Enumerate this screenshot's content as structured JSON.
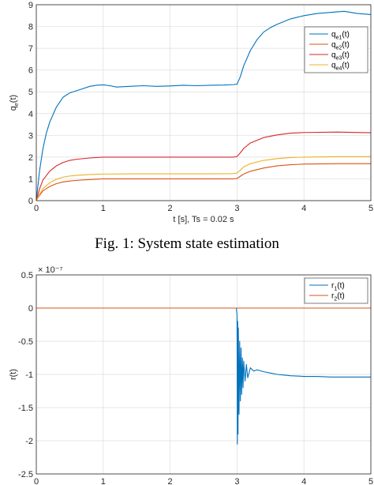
{
  "caption": "Fig. 1: System state estimation",
  "chart_data": [
    {
      "type": "line",
      "title": "",
      "xlabel": "t [s], Ts = 0.02 s",
      "ylabel": "q_e(t)",
      "xlim": [
        0,
        5
      ],
      "ylim": [
        0,
        9
      ],
      "xticks": [
        "0",
        "1",
        "2",
        "3",
        "4",
        "5"
      ],
      "yticks": [
        "0",
        "1",
        "2",
        "3",
        "4",
        "5",
        "6",
        "7",
        "8",
        "9"
      ],
      "grid": true,
      "legend": "top-right",
      "series": [
        {
          "name": "q_e1(t)",
          "color": "#0072BD",
          "x": [
            0,
            0.05,
            0.1,
            0.15,
            0.2,
            0.3,
            0.4,
            0.5,
            0.6,
            0.7,
            0.8,
            0.9,
            1.0,
            1.1,
            1.2,
            1.4,
            1.6,
            1.8,
            2.0,
            2.2,
            2.4,
            2.6,
            2.8,
            2.95,
            3.0,
            3.05,
            3.1,
            3.2,
            3.3,
            3.4,
            3.5,
            3.6,
            3.8,
            4.0,
            4.2,
            4.4,
            4.6,
            4.8,
            5.0
          ],
          "values": [
            0,
            1.4,
            2.4,
            3.1,
            3.6,
            4.3,
            4.75,
            4.95,
            5.05,
            5.15,
            5.25,
            5.3,
            5.32,
            5.28,
            5.22,
            5.25,
            5.28,
            5.25,
            5.27,
            5.3,
            5.28,
            5.3,
            5.31,
            5.33,
            5.35,
            5.7,
            6.2,
            6.9,
            7.4,
            7.75,
            7.95,
            8.1,
            8.35,
            8.5,
            8.6,
            8.65,
            8.7,
            8.6,
            8.55
          ]
        },
        {
          "name": "q_e2(t)",
          "color": "#D95319",
          "x": [
            0,
            0.05,
            0.1,
            0.2,
            0.3,
            0.4,
            0.5,
            0.6,
            0.8,
            1.0,
            1.5,
            2.0,
            2.5,
            2.95,
            3.0,
            3.05,
            3.1,
            3.2,
            3.4,
            3.6,
            3.8,
            4.0,
            4.5,
            5.0
          ],
          "values": [
            0,
            0.25,
            0.45,
            0.65,
            0.78,
            0.86,
            0.9,
            0.93,
            0.97,
            1.0,
            1.0,
            1.0,
            1.0,
            1.0,
            1.02,
            1.12,
            1.22,
            1.35,
            1.5,
            1.6,
            1.65,
            1.68,
            1.7,
            1.7
          ]
        },
        {
          "name": "q_e3(t)",
          "color": "#D62728",
          "x": [
            0,
            0.05,
            0.1,
            0.2,
            0.3,
            0.4,
            0.5,
            0.6,
            0.8,
            1.0,
            1.5,
            2.0,
            2.5,
            2.95,
            3.0,
            3.05,
            3.1,
            3.2,
            3.4,
            3.6,
            3.8,
            4.0,
            4.5,
            5.0
          ],
          "values": [
            0,
            0.55,
            0.95,
            1.35,
            1.6,
            1.75,
            1.85,
            1.9,
            1.96,
            2.0,
            2.0,
            2.0,
            2.0,
            2.0,
            2.03,
            2.2,
            2.4,
            2.65,
            2.9,
            3.02,
            3.1,
            3.13,
            3.15,
            3.12
          ]
        },
        {
          "name": "q_e4(t)",
          "color": "#EDB120",
          "x": [
            0,
            0.05,
            0.1,
            0.2,
            0.3,
            0.4,
            0.5,
            0.6,
            0.8,
            1.0,
            1.5,
            2.0,
            2.5,
            2.95,
            3.0,
            3.05,
            3.1,
            3.2,
            3.4,
            3.6,
            3.8,
            4.0,
            4.5,
            5.0
          ],
          "values": [
            0,
            0.3,
            0.55,
            0.82,
            0.98,
            1.08,
            1.13,
            1.16,
            1.2,
            1.22,
            1.23,
            1.23,
            1.23,
            1.24,
            1.27,
            1.4,
            1.55,
            1.7,
            1.85,
            1.93,
            1.98,
            2.0,
            2.02,
            2.02
          ]
        }
      ]
    },
    {
      "type": "line",
      "title": "",
      "xlabel": "",
      "ylabel": "r(t)",
      "exponent_label": "× 10⁻⁷",
      "xlim": [
        0,
        5
      ],
      "ylim": [
        -2.5,
        0.5
      ],
      "xticks": [
        "0",
        "1",
        "2",
        "3",
        "4",
        "5"
      ],
      "yticks": [
        "0.5",
        "0",
        "-0.5",
        "-1",
        "-1.5",
        "-2",
        "-2.5"
      ],
      "grid": true,
      "legend": "top-right",
      "series": [
        {
          "name": "r_1(t)",
          "color": "#0072BD",
          "x": [
            0,
            2.99,
            3.0,
            3.005,
            3.01,
            3.015,
            3.02,
            3.03,
            3.04,
            3.05,
            3.06,
            3.07,
            3.08,
            3.09,
            3.1,
            3.12,
            3.14,
            3.16,
            3.2,
            3.25,
            3.3,
            3.4,
            3.5,
            3.6,
            3.7,
            3.8,
            4.0,
            4.2,
            4.4,
            4.6,
            4.8,
            5.0
          ],
          "values": [
            0,
            0,
            -0.1,
            -2.05,
            -0.2,
            -1.9,
            -0.3,
            -1.6,
            -0.5,
            -1.4,
            -0.6,
            -1.3,
            -0.75,
            -1.2,
            -0.8,
            -1.1,
            -0.85,
            -1.05,
            -0.9,
            -0.95,
            -0.93,
            -0.96,
            -0.98,
            -1.0,
            -1.01,
            -1.02,
            -1.03,
            -1.03,
            -1.04,
            -1.04,
            -1.04,
            -1.04
          ]
        },
        {
          "name": "r_2(t)",
          "color": "#D95319",
          "x": [
            0,
            5
          ],
          "values": [
            0,
            0
          ]
        }
      ]
    }
  ]
}
